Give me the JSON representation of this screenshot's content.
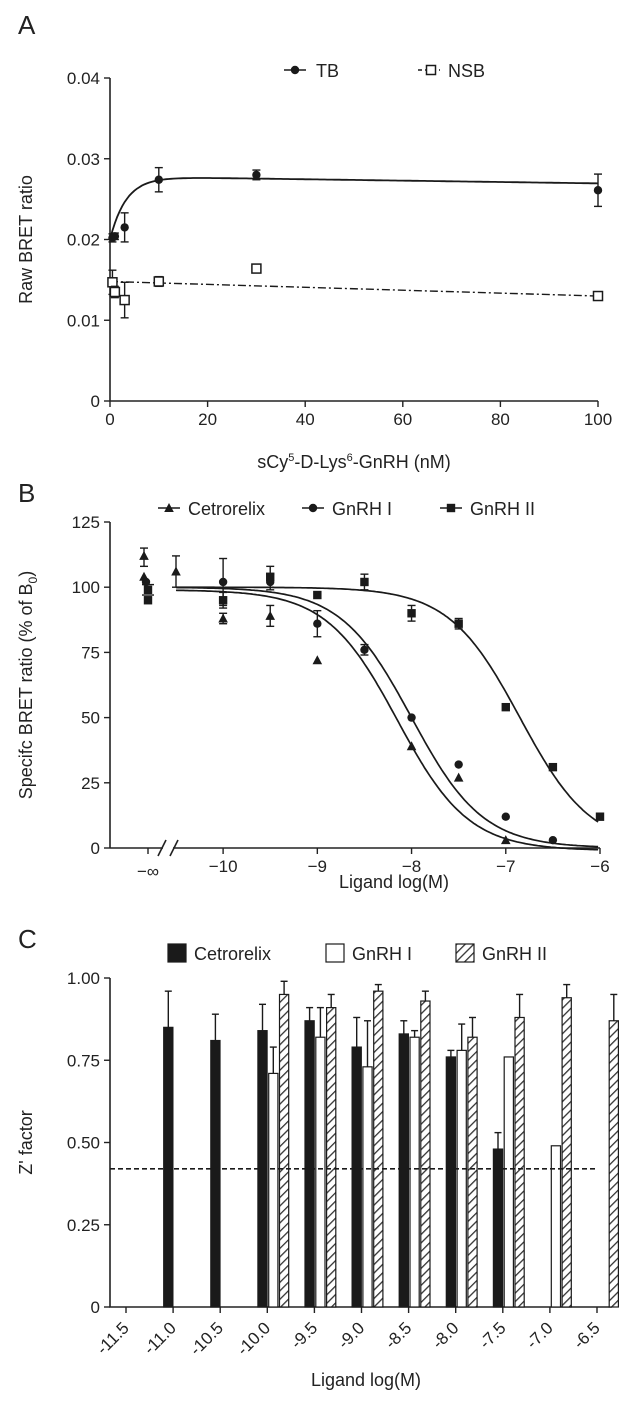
{
  "chart_data": [
    {
      "panel": "A",
      "type": "scatter",
      "xlabel_parts": [
        "sCy",
        "5",
        "-D-Lys",
        "6",
        "-GnRH (nM)"
      ],
      "ylabel": "Raw BRET ratio",
      "xlim": [
        0,
        100
      ],
      "ylim": [
        0,
        0.04
      ],
      "x_ticks": [
        "0",
        "20",
        "40",
        "60",
        "80",
        "100"
      ],
      "y_ticks": [
        "0",
        "0.01",
        "0.02",
        "0.03",
        "0.04"
      ],
      "legend_position": "top",
      "series": [
        {
          "name": "TB",
          "marker": "filled-circle",
          "line": "solid",
          "points": [
            {
              "x": 0.5,
              "y": 0.0202,
              "err": 0.0005
            },
            {
              "x": 1,
              "y": 0.0204,
              "err": 0.0004
            },
            {
              "x": 3,
              "y": 0.0215,
              "err": 0.0018
            },
            {
              "x": 10,
              "y": 0.0274,
              "err": 0.0015
            },
            {
              "x": 30,
              "y": 0.028,
              "err": 0.0006
            },
            {
              "x": 100,
              "y": 0.0261,
              "err": 0.002
            }
          ]
        },
        {
          "name": "NSB",
          "marker": "open-square",
          "line": "dash-dot",
          "points": [
            {
              "x": 0.5,
              "y": 0.0147,
              "err": 0.0015
            },
            {
              "x": 1,
              "y": 0.0135,
              "err": 0.0007
            },
            {
              "x": 3,
              "y": 0.0125,
              "err": 0.0022
            },
            {
              "x": 10,
              "y": 0.0148,
              "err": 0.0006
            },
            {
              "x": 30,
              "y": 0.0164,
              "err": 0.0
            },
            {
              "x": 100,
              "y": 0.013,
              "err": 0.0
            }
          ]
        }
      ]
    },
    {
      "panel": "B",
      "type": "scatter",
      "xlabel": "Ligand log(M)",
      "ylabel_parts": [
        "Specifc BRET ratio (% of B",
        "0",
        ")"
      ],
      "xlim": [
        -10.5,
        -6
      ],
      "ylim": [
        0,
        125
      ],
      "x_ticks": [
        "−10",
        "−9",
        "−8",
        "−7",
        "−6"
      ],
      "x_break_label": "−∞",
      "y_ticks": [
        "0",
        "25",
        "50",
        "75",
        "100",
        "125"
      ],
      "legend_position": "top",
      "series": [
        {
          "name": "Cetrorelix",
          "marker": "triangle",
          "ic50_log": -8.15,
          "inf_points": [
            112,
            104
          ],
          "points": [
            {
              "x": -10.5,
              "y": 106,
              "err": 6
            },
            {
              "x": -10,
              "y": 88,
              "err": 2
            },
            {
              "x": -9.5,
              "y": 89,
              "err": 4
            },
            {
              "x": -9,
              "y": 72,
              "err": 0
            },
            {
              "x": -8,
              "y": 39,
              "err": 0
            },
            {
              "x": -7.5,
              "y": 27,
              "err": 0
            },
            {
              "x": -7,
              "y": 3,
              "err": 0
            }
          ]
        },
        {
          "name": "GnRH I",
          "marker": "filled-circle",
          "ic50_log": -8.0,
          "inf_points": [
            102
          ],
          "points": [
            {
              "x": -10,
              "y": 102,
              "err": 9
            },
            {
              "x": -9.5,
              "y": 102,
              "err": 3
            },
            {
              "x": -9,
              "y": 86,
              "err": 5
            },
            {
              "x": -8.5,
              "y": 76,
              "err": 2
            },
            {
              "x": -8,
              "y": 50,
              "err": 0
            },
            {
              "x": -7.5,
              "y": 32,
              "err": 0
            },
            {
              "x": -7,
              "y": 12,
              "err": 0
            },
            {
              "x": -6.5,
              "y": 3,
              "err": 0
            }
          ]
        },
        {
          "name": "GnRH II",
          "marker": "filled-square",
          "ic50_log": -6.85,
          "inf_points": [
            95,
            99
          ],
          "points": [
            {
              "x": -10,
              "y": 95,
              "err": 3
            },
            {
              "x": -9.5,
              "y": 104,
              "err": 4
            },
            {
              "x": -9,
              "y": 97,
              "err": 0
            },
            {
              "x": -8.5,
              "y": 102,
              "err": 3
            },
            {
              "x": -8,
              "y": 90,
              "err": 3
            },
            {
              "x": -7.5,
              "y": 86,
              "err": 2
            },
            {
              "x": -7,
              "y": 54,
              "err": 0
            },
            {
              "x": -6.5,
              "y": 31,
              "err": 0
            },
            {
              "x": -6,
              "y": 12,
              "err": 0
            }
          ]
        }
      ]
    },
    {
      "panel": "C",
      "type": "bar",
      "xlabel": "Ligand log(M)",
      "ylabel": "Z' factor",
      "ylim": [
        0,
        1.0
      ],
      "y_ticks": [
        "0",
        "0.25",
        "0.50",
        "0.75",
        "1.00"
      ],
      "x_tick_values": [
        -11.5,
        -11.0,
        -10.5,
        -10.0,
        -9.5,
        -9.0,
        -8.5,
        -8.0,
        -7.5,
        -7.0,
        -6.5
      ],
      "x_ticks": [
        "-11.5",
        "-11.0",
        "-10.5",
        "-10.0",
        "-9.5",
        "-9.0",
        "-8.5",
        "-8.0",
        "-7.5",
        "-7.0",
        "-6.5"
      ],
      "threshold": 0.42,
      "legend_position": "top",
      "series": [
        {
          "name": "Cetrorelix",
          "fill": "#1a1a1a",
          "bars": [
            {
              "x": -11.0,
              "y": 0.85,
              "err": 0.11
            },
            {
              "x": -10.5,
              "y": 0.81,
              "err": 0.08
            },
            {
              "x": -10.0,
              "y": 0.84,
              "err": 0.08
            },
            {
              "x": -9.5,
              "y": 0.87,
              "err": 0.04
            },
            {
              "x": -9.0,
              "y": 0.79,
              "err": 0.09
            },
            {
              "x": -8.5,
              "y": 0.83,
              "err": 0.04
            },
            {
              "x": -8.0,
              "y": 0.76,
              "err": 0.02
            },
            {
              "x": -7.5,
              "y": 0.48,
              "err": 0.05
            }
          ]
        },
        {
          "name": "GnRH I",
          "fill": "#ffffff",
          "bars": [
            {
              "x": -10.0,
              "y": 0.71,
              "err": 0.08
            },
            {
              "x": -9.5,
              "y": 0.82,
              "err": 0.09
            },
            {
              "x": -9.0,
              "y": 0.73,
              "err": 0.14
            },
            {
              "x": -8.5,
              "y": 0.82,
              "err": 0.02
            },
            {
              "x": -8.0,
              "y": 0.78,
              "err": 0.08
            },
            {
              "x": -7.5,
              "y": 0.76,
              "err": 0.0
            },
            {
              "x": -7.0,
              "y": 0.49,
              "err": 0.0
            }
          ]
        },
        {
          "name": "GnRH II",
          "fill": "hatched",
          "bars": [
            {
              "x": -10.0,
              "y": 0.95,
              "err": 0.04
            },
            {
              "x": -9.5,
              "y": 0.91,
              "err": 0.04
            },
            {
              "x": -9.0,
              "y": 0.96,
              "err": 0.02
            },
            {
              "x": -8.5,
              "y": 0.93,
              "err": 0.03
            },
            {
              "x": -8.0,
              "y": 0.82,
              "err": 0.06
            },
            {
              "x": -7.5,
              "y": 0.88,
              "err": 0.07
            },
            {
              "x": -7.0,
              "y": 0.94,
              "err": 0.04
            },
            {
              "x": -6.5,
              "y": 0.87,
              "err": 0.08
            }
          ]
        }
      ]
    }
  ],
  "panel_labels": [
    "A",
    "B",
    "C"
  ]
}
